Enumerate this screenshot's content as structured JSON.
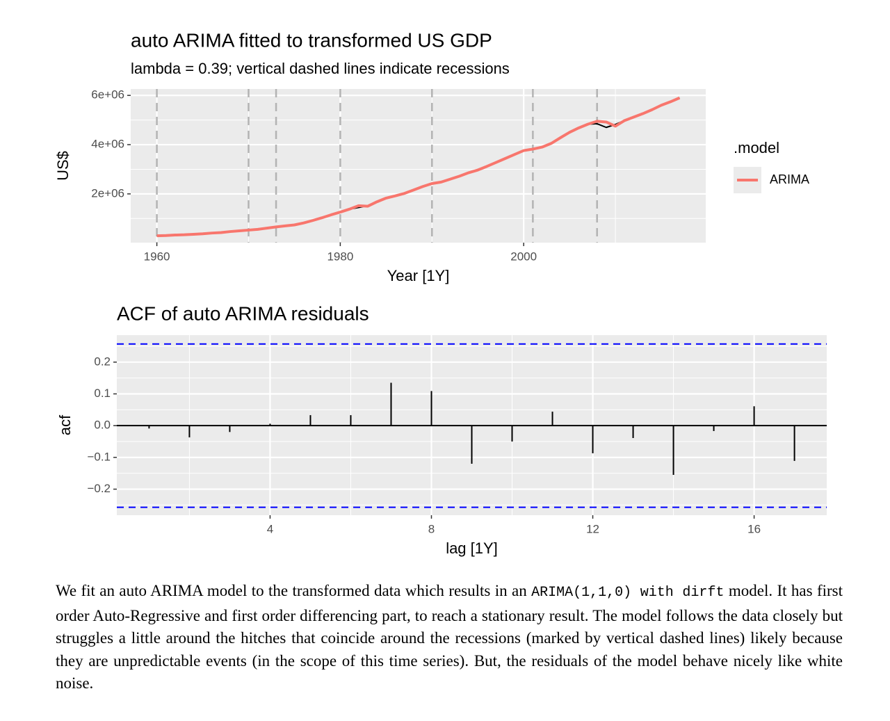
{
  "chart_data": [
    {
      "type": "line",
      "title": "auto ARIMA fitted to transformed US GDP",
      "subtitle": "lambda = 0.39; vertical dashed lines indicate recessions",
      "x_label": "Year [1Y]",
      "y_label": "US$",
      "x": [
        1960,
        1961,
        1962,
        1963,
        1964,
        1965,
        1966,
        1967,
        1968,
        1969,
        1970,
        1971,
        1972,
        1973,
        1974,
        1975,
        1976,
        1977,
        1978,
        1979,
        1980,
        1981,
        1982,
        1983,
        1984,
        1985,
        1986,
        1987,
        1988,
        1989,
        1990,
        1991,
        1992,
        1993,
        1994,
        1995,
        1996,
        1997,
        1998,
        1999,
        2000,
        2001,
        2002,
        2003,
        2004,
        2005,
        2006,
        2007,
        2008,
        2009,
        2010,
        2011,
        2012,
        2013,
        2014,
        2015,
        2016,
        2017
      ],
      "data_line": {
        "color": "#000000",
        "values": [
          300000,
          310000,
          330000,
          340000,
          360000,
          380000,
          410000,
          430000,
          470000,
          500000,
          530000,
          560000,
          610000,
          660000,
          700000,
          740000,
          820000,
          920000,
          1030000,
          1150000,
          1260000,
          1380000,
          1450000,
          1520000,
          1680000,
          1830000,
          1920000,
          2020000,
          2160000,
          2300000,
          2420000,
          2480000,
          2600000,
          2720000,
          2860000,
          2970000,
          3120000,
          3280000,
          3440000,
          3600000,
          3760000,
          3820000,
          3900000,
          4050000,
          4280000,
          4500000,
          4680000,
          4830000,
          4850000,
          4700000,
          4820000,
          4980000,
          5120000,
          5260000,
          5420000,
          5600000,
          5740000,
          5900000
        ]
      },
      "series": [
        {
          "name": "ARIMA",
          "color": "#f8766d",
          "values": [
            300000,
            310000,
            330000,
            340000,
            360000,
            380000,
            410000,
            430000,
            470000,
            500000,
            530000,
            560000,
            610000,
            660000,
            700000,
            740000,
            820000,
            920000,
            1030000,
            1150000,
            1260000,
            1380000,
            1520000,
            1500000,
            1680000,
            1830000,
            1920000,
            2020000,
            2160000,
            2300000,
            2420000,
            2480000,
            2600000,
            2720000,
            2860000,
            2970000,
            3120000,
            3280000,
            3440000,
            3600000,
            3760000,
            3820000,
            3900000,
            4050000,
            4280000,
            4500000,
            4680000,
            4830000,
            4950000,
            4920000,
            4750000,
            4980000,
            5120000,
            5260000,
            5420000,
            5600000,
            5740000,
            5900000
          ]
        }
      ],
      "xlim": [
        1957.15,
        2019.85
      ],
      "xticks": [
        1960,
        1980,
        2000
      ],
      "ylim": [
        20000,
        6260000
      ],
      "yticks": [
        {
          "value": 2000000,
          "label": "2e+06"
        },
        {
          "value": 4000000,
          "label": "4e+06"
        },
        {
          "value": 6000000,
          "label": "6e+06"
        }
      ],
      "grid": true,
      "vlines": [
        1960,
        1970,
        1973,
        1980,
        1990,
        2001,
        2008
      ],
      "legend_title": ".model",
      "legend": "right"
    },
    {
      "type": "bar",
      "title": "ACF of auto ARIMA residuals",
      "x_label": "lag [1Y]",
      "y_label": "acf",
      "x": [
        1,
        2,
        3,
        4,
        5,
        6,
        7,
        8,
        9,
        10,
        11,
        12,
        13,
        14,
        15,
        16,
        17
      ],
      "values": [
        -0.009,
        -0.037,
        -0.02,
        0.006,
        0.033,
        0.033,
        0.135,
        0.109,
        -0.12,
        -0.05,
        0.044,
        -0.087,
        -0.039,
        -0.155,
        -0.017,
        0.061,
        -0.111
      ],
      "color": "#000000",
      "xlim": [
        0.2,
        17.8
      ],
      "xticks": [
        4,
        8,
        12,
        16
      ],
      "ylim": [
        -0.282,
        0.285
      ],
      "yticks": [
        {
          "value": -0.2,
          "label": "−0.2"
        },
        {
          "value": -0.1,
          "label": "−0.1"
        },
        {
          "value": 0,
          "label": "0.0"
        },
        0.1,
        0.2
      ],
      "grid": true,
      "ci_lines": [
        0.257,
        -0.257
      ],
      "ci_color": "#0000ff"
    }
  ],
  "document": {
    "paragraph": [
      "We fit an auto ARIMA model to the transformed data which results in an ",
      "ARIMA(1,1,0) with dirft",
      " model. It has first order Auto-Regressive and first order differencing part, to reach a stationary result. The model follows the data closely but struggles a little around the hitches that coincide around the recessions (marked by vertical dashed lines) likely because they are unpredictable events (in the scope of this time series). But, the residuals of the model behave nicely like white noise."
    ]
  }
}
